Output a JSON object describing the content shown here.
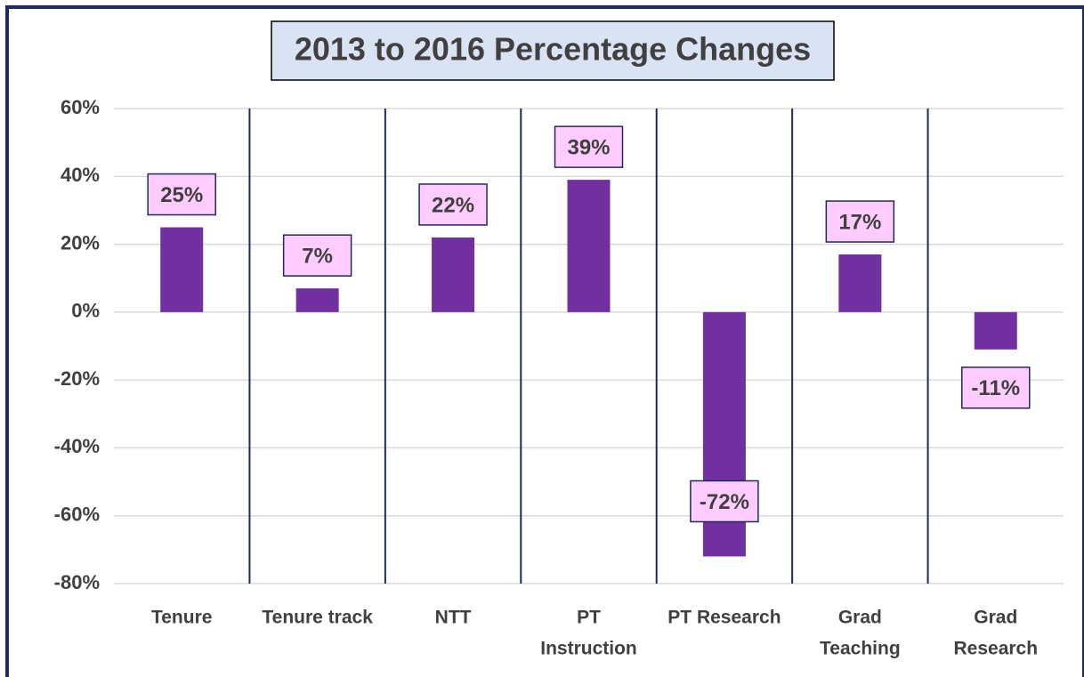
{
  "chart_data": {
    "type": "bar",
    "title": "2013 to 2016 Percentage Changes",
    "categories": [
      "Tenure",
      "Tenure track",
      "NTT",
      [
        "PT",
        "Instruction"
      ],
      "PT Research",
      [
        "Grad",
        "Teaching"
      ],
      [
        "Grad",
        "Research"
      ]
    ],
    "values": [
      25,
      7,
      22,
      39,
      -72,
      17,
      -11
    ],
    "value_labels": [
      "25%",
      "7%",
      "22%",
      "39%",
      "-72%",
      "17%",
      "-11%"
    ],
    "color": "#7030a0",
    "ylim": [
      -80,
      60
    ],
    "yticks": [
      {
        "value": -80,
        "label": "-80%"
      },
      {
        "value": -60,
        "label": "-60%"
      },
      {
        "value": -40,
        "label": "-40%"
      },
      {
        "value": -20,
        "label": "-20%"
      },
      {
        "value": 0,
        "label": "0%"
      },
      {
        "value": 20,
        "label": "20%"
      },
      {
        "value": 40,
        "label": "40%"
      },
      {
        "value": 60,
        "label": "60%"
      }
    ],
    "grid": true
  }
}
